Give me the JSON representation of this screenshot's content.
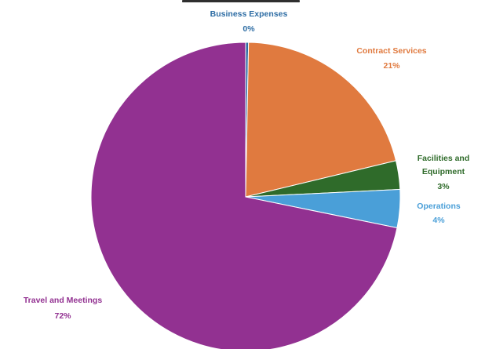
{
  "chart_data": {
    "type": "pie",
    "title": "",
    "start_angle_deg": -90,
    "direction": "clockwise",
    "legend": "none",
    "slices": [
      {
        "name": "Business Expenses",
        "value": 0.3,
        "percent_label": "0%",
        "color": "#2e6da4"
      },
      {
        "name": "Contract Services",
        "value": 21,
        "percent_label": "21%",
        "color": "#e07a3f"
      },
      {
        "name": "Facilities and Equipment",
        "label_lines": [
          "Facilities and",
          "Equipment"
        ],
        "value": 3,
        "percent_label": "3%",
        "color": "#2f6b2a"
      },
      {
        "name": "Operations",
        "value": 4,
        "percent_label": "4%",
        "color": "#4a9fd8"
      },
      {
        "name": "Travel and Meetings",
        "value": 72,
        "percent_label": "72%",
        "color": "#923191"
      }
    ]
  }
}
